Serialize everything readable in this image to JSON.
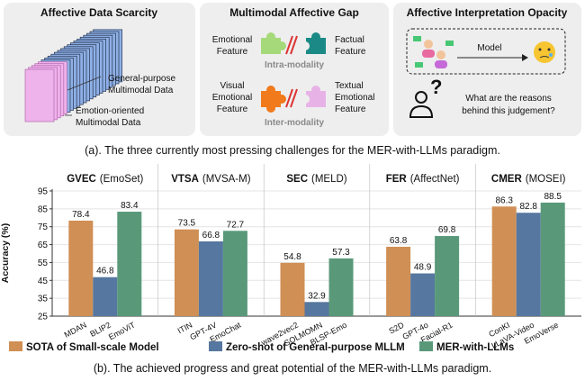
{
  "panels": [
    {
      "title": "Affective Data Scarcity",
      "labels": [
        "General-purpose",
        "Multimodal Data",
        "Emotion-oriented",
        "Multimodal Data"
      ]
    },
    {
      "title": "Multimodal Affective Gap",
      "intra": {
        "left": [
          "Emotional",
          "Feature"
        ],
        "right": [
          "Factual",
          "Feature"
        ],
        "label": "Intra-modality"
      },
      "inter": {
        "left": [
          "Visual",
          "Emotional",
          "Feature"
        ],
        "right": [
          "Textual",
          "Emotional",
          "Feature"
        ],
        "label": "Inter-modality"
      }
    },
    {
      "title": "Affective Interpretation Opacity",
      "model": "Model",
      "question": [
        "What are the reasons",
        "behind this judgement?"
      ]
    }
  ],
  "caption_a": "(a). The three currently most pressing challenges for the MER-with-LLMs paradigm.",
  "chart_data": {
    "type": "bar",
    "y_label": "Accuracy (%)",
    "categories": [
      "GVEC",
      "VTSA",
      "SEC",
      "FER",
      "CMER"
    ],
    "category_datasets": [
      "(EmoSet)",
      "(MVSA-M)",
      "(MELD)",
      "(AffectNet)",
      "(MOSEI)"
    ],
    "bar_labels": [
      [
        "MDAN",
        "BLIP2",
        "EmoViT"
      ],
      [
        "ITIN",
        "GPT-4V",
        "EmoChat"
      ],
      [
        "wave2vec2",
        "SOLMOMN",
        "BLSP-Emo"
      ],
      [
        "S2D",
        "GPT-4o",
        "Facial-R1"
      ],
      [
        "ConKI",
        "LLaVA-Video",
        "EmoVerse"
      ]
    ],
    "series": [
      {
        "name": "SOTA of Small-scale Model",
        "color": "#d08f55",
        "values": [
          78.4,
          73.5,
          54.8,
          63.8,
          86.3
        ]
      },
      {
        "name": "Zero-shot of General-purpose MLLM",
        "color": "#56779f",
        "values": [
          46.8,
          66.8,
          32.9,
          48.9,
          82.8
        ]
      },
      {
        "name": "MER-with-LLMs",
        "color": "#59997a",
        "values": [
          83.4,
          72.7,
          57.3,
          69.8,
          88.5
        ]
      }
    ],
    "ylim": [
      25,
      95
    ],
    "yticks": [
      25,
      35,
      45,
      55,
      65,
      75,
      85,
      95
    ],
    "grid": true
  },
  "caption_b": "(b). The achieved progress and great potential of the MER-with-LLMs paradigm."
}
